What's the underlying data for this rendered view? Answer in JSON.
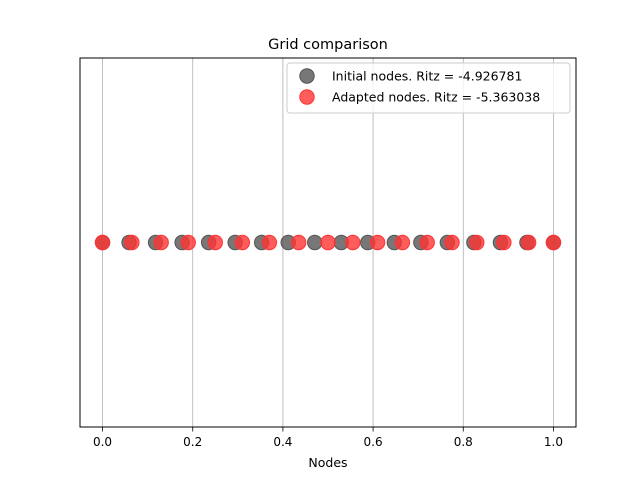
{
  "chart_data": {
    "type": "scatter",
    "title": "Grid comparison",
    "xlabel": "Nodes",
    "ylabel": "",
    "xlim": [
      -0.05,
      1.05
    ],
    "xticks": [
      0.0,
      0.2,
      0.4,
      0.6,
      0.8,
      1.0
    ],
    "xtick_labels": [
      "0.0",
      "0.2",
      "0.4",
      "0.6",
      "0.8",
      "1.0"
    ],
    "yticks_visible": false,
    "grid": "x-axis vertical lines",
    "legend_position": "top-right",
    "series": [
      {
        "name": "Initial nodes. Ritz = -4.926781",
        "color": "#555555",
        "x": [
          0.0,
          0.0588,
          0.1176,
          0.1765,
          0.2353,
          0.2941,
          0.3529,
          0.4118,
          0.4706,
          0.5294,
          0.5882,
          0.6471,
          0.7059,
          0.7647,
          0.8235,
          0.8824,
          0.9412,
          1.0
        ],
        "y": [
          0,
          0,
          0,
          0,
          0,
          0,
          0,
          0,
          0,
          0,
          0,
          0,
          0,
          0,
          0,
          0,
          0,
          0
        ]
      },
      {
        "name": "Adapted nodes. Ritz = -5.363038",
        "color": "#ff3333",
        "x": [
          0.0,
          0.065,
          0.13,
          0.19,
          0.25,
          0.31,
          0.37,
          0.435,
          0.5,
          0.555,
          0.61,
          0.665,
          0.72,
          0.775,
          0.83,
          0.89,
          0.945,
          1.0
        ],
        "y": [
          0,
          0,
          0,
          0,
          0,
          0,
          0,
          0,
          0,
          0,
          0,
          0,
          0,
          0,
          0,
          0,
          0,
          0
        ]
      }
    ]
  }
}
